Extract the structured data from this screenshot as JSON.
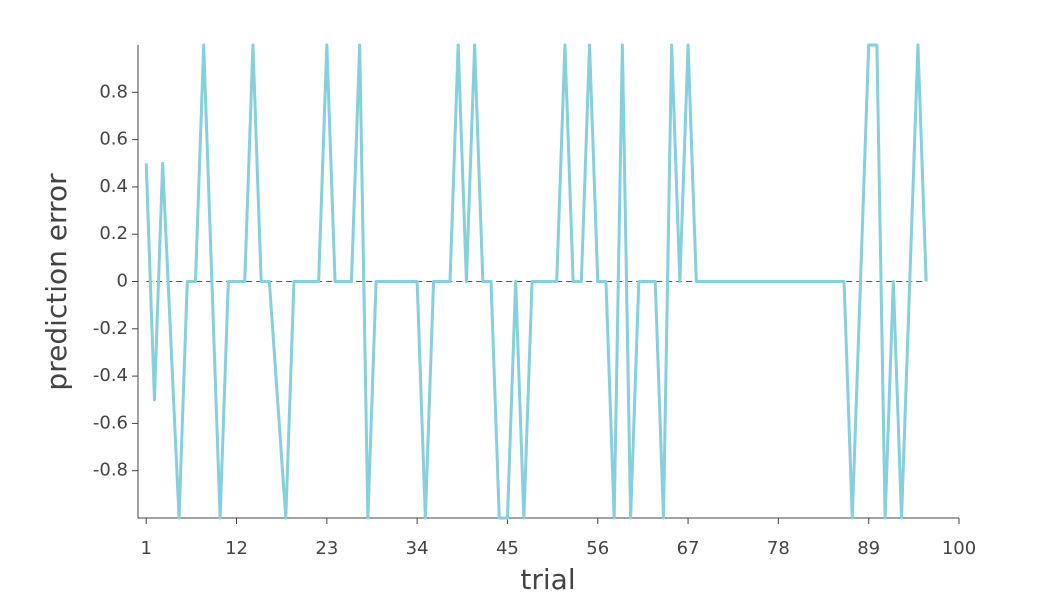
{
  "chart_data": {
    "type": "line",
    "xlabel": "trial",
    "ylabel": "prediction error",
    "x": [
      1,
      2,
      3,
      5,
      6,
      7,
      8,
      10,
      11,
      13,
      14,
      15,
      16,
      18,
      19,
      22,
      23,
      24,
      26,
      27,
      28,
      29,
      34,
      35,
      36,
      38,
      39,
      40,
      41,
      42,
      43,
      44,
      45,
      46,
      47,
      48,
      51,
      52,
      53,
      54,
      55,
      56,
      57,
      58,
      59,
      60,
      61,
      63,
      64,
      65,
      66,
      67,
      68,
      86,
      87,
      89,
      90,
      91,
      92,
      93,
      95,
      96
    ],
    "series": [
      {
        "name": "prediction error",
        "color": "#86cfdc",
        "values": [
          0.5,
          -0.5,
          0.5,
          -1,
          0,
          0,
          1,
          -1,
          0,
          0,
          1,
          0,
          0,
          -1,
          0,
          0,
          1,
          0,
          0,
          1,
          -1,
          0,
          0,
          -1,
          0,
          0,
          1,
          0,
          1,
          0,
          0,
          -1,
          -1,
          0,
          -1,
          0,
          0,
          1,
          0,
          0,
          1,
          0,
          0,
          -1,
          1,
          -1,
          0,
          0,
          -1,
          1,
          0,
          1,
          0,
          0,
          -1,
          1,
          1,
          -1,
          0,
          -1,
          1,
          0
        ]
      }
    ],
    "xlim": [
      0,
      100
    ],
    "xticks": [
      1,
      12,
      23,
      34,
      45,
      56,
      67,
      78,
      89,
      100
    ],
    "ylim": [
      -1,
      1
    ],
    "yticks": [
      -0.8,
      -0.6,
      -0.4,
      -0.2,
      0,
      0.2,
      0.4,
      0.6,
      0.8
    ],
    "reference_line": {
      "y": 0,
      "color": "#555555"
    }
  }
}
